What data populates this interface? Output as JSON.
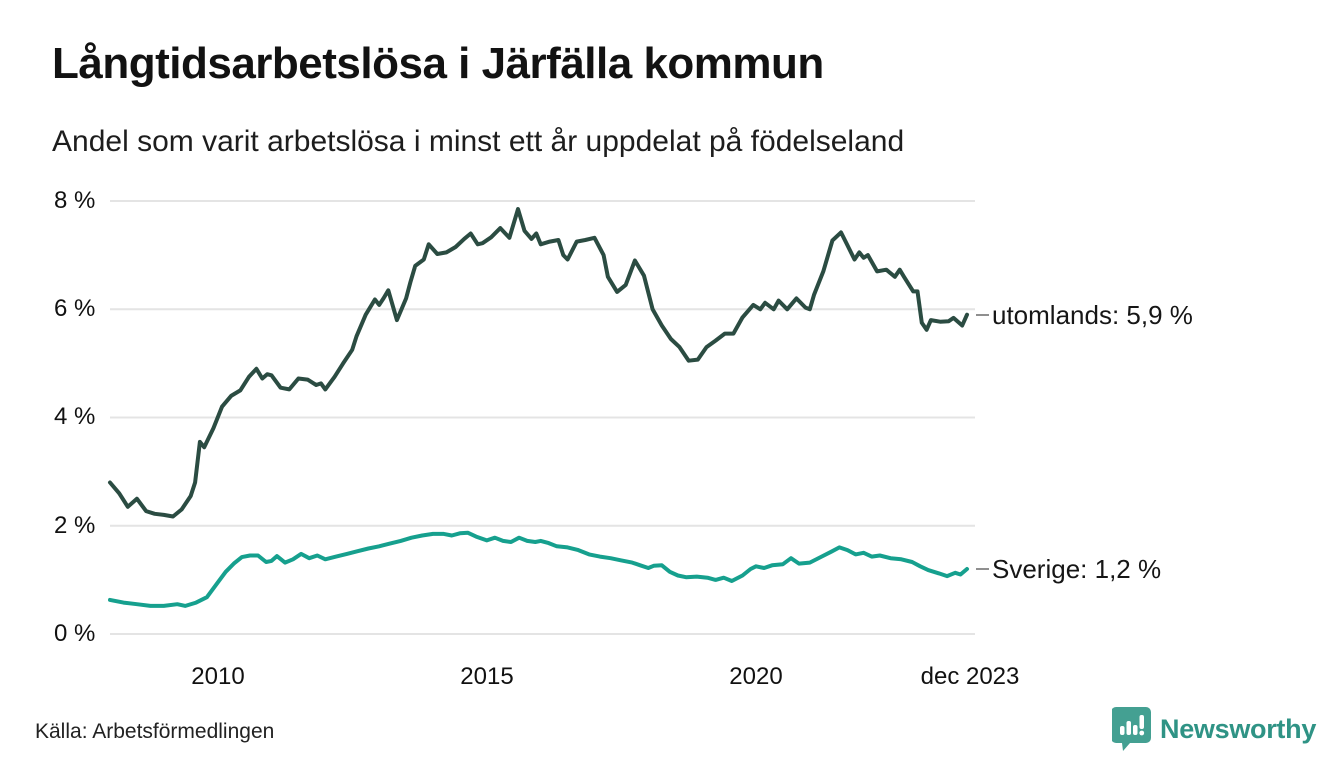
{
  "header": {
    "title": "Långtidsarbetslösa i Järfälla kommun",
    "subtitle": "Andel som varit arbetslösa i minst ett år uppdelat på födelseland"
  },
  "footer": {
    "source": "Källa: Arbetsförmedlingen",
    "logo_text": "Newsworthy",
    "logo_icon": "newsworthy-badge-bar-chart-exclamation"
  },
  "colors": {
    "utomlands_line": "#2b4c42",
    "sverige_line": "#16a08e",
    "grid": "#e4e4e4",
    "label_dash": "#8f8f8f",
    "text": "#161616",
    "logo_teal": "#44a092"
  },
  "chart_data": {
    "type": "line",
    "title": "Långtidsarbetslösa i Järfälla kommun",
    "subtitle": "Andel som varit arbetslösa i minst ett år uppdelat på födelseland",
    "xlabel": "",
    "ylabel": "",
    "unit": "%",
    "xlim": [
      2008.0,
      2023.92
    ],
    "ylim": [
      0,
      8
    ],
    "grid": "horizontal",
    "legend_position": "right-end-labels",
    "y_axis": {
      "ticks": [
        {
          "label": "0 %",
          "v": 0
        },
        {
          "label": "2 %",
          "v": 2
        },
        {
          "label": "4 %",
          "v": 4
        },
        {
          "label": "6 %",
          "v": 6
        },
        {
          "label": "8 %",
          "v": 8
        }
      ]
    },
    "x_axis": {
      "ticks": [
        {
          "label": "2010",
          "t": 2010
        },
        {
          "label": "2015",
          "t": 2015
        },
        {
          "label": "2020",
          "t": 2020
        },
        {
          "label": "dec 2023",
          "t": 2023.92
        }
      ]
    },
    "series": [
      {
        "name": "utomlands",
        "end_label": "utomlands: 5,9 %",
        "end_value": 5.9,
        "color": "#2b4c42",
        "points": [
          [
            2008.0,
            2.8
          ],
          [
            2008.17,
            2.6
          ],
          [
            2008.33,
            2.35
          ],
          [
            2008.5,
            2.5
          ],
          [
            2008.67,
            2.27
          ],
          [
            2008.83,
            2.22
          ],
          [
            2009.0,
            2.2
          ],
          [
            2009.17,
            2.17
          ],
          [
            2009.33,
            2.3
          ],
          [
            2009.5,
            2.55
          ],
          [
            2009.58,
            2.8
          ],
          [
            2009.67,
            3.55
          ],
          [
            2009.75,
            3.45
          ],
          [
            2009.92,
            3.8
          ],
          [
            2010.08,
            4.2
          ],
          [
            2010.25,
            4.4
          ],
          [
            2010.42,
            4.5
          ],
          [
            2010.58,
            4.75
          ],
          [
            2010.72,
            4.9
          ],
          [
            2010.83,
            4.72
          ],
          [
            2010.92,
            4.8
          ],
          [
            2011.0,
            4.78
          ],
          [
            2011.17,
            4.55
          ],
          [
            2011.33,
            4.52
          ],
          [
            2011.5,
            4.72
          ],
          [
            2011.67,
            4.7
          ],
          [
            2011.83,
            4.6
          ],
          [
            2011.92,
            4.63
          ],
          [
            2012.0,
            4.52
          ],
          [
            2012.17,
            4.75
          ],
          [
            2012.33,
            5.0
          ],
          [
            2012.5,
            5.25
          ],
          [
            2012.58,
            5.5
          ],
          [
            2012.75,
            5.9
          ],
          [
            2012.92,
            6.18
          ],
          [
            2013.0,
            6.08
          ],
          [
            2013.08,
            6.2
          ],
          [
            2013.17,
            6.35
          ],
          [
            2013.33,
            5.8
          ],
          [
            2013.5,
            6.2
          ],
          [
            2013.58,
            6.5
          ],
          [
            2013.67,
            6.8
          ],
          [
            2013.83,
            6.92
          ],
          [
            2013.92,
            7.2
          ],
          [
            2014.08,
            7.02
          ],
          [
            2014.25,
            7.05
          ],
          [
            2014.42,
            7.15
          ],
          [
            2014.58,
            7.3
          ],
          [
            2014.7,
            7.4
          ],
          [
            2014.83,
            7.2
          ],
          [
            2014.92,
            7.22
          ],
          [
            2015.08,
            7.33
          ],
          [
            2015.25,
            7.5
          ],
          [
            2015.42,
            7.32
          ],
          [
            2015.58,
            7.85
          ],
          [
            2015.7,
            7.45
          ],
          [
            2015.83,
            7.3
          ],
          [
            2015.92,
            7.4
          ],
          [
            2016.0,
            7.2
          ],
          [
            2016.17,
            7.25
          ],
          [
            2016.33,
            7.28
          ],
          [
            2016.42,
            7.0
          ],
          [
            2016.5,
            6.92
          ],
          [
            2016.67,
            7.25
          ],
          [
            2016.83,
            7.28
          ],
          [
            2017.0,
            7.32
          ],
          [
            2017.17,
            7.0
          ],
          [
            2017.25,
            6.6
          ],
          [
            2017.42,
            6.32
          ],
          [
            2017.58,
            6.45
          ],
          [
            2017.75,
            6.9
          ],
          [
            2017.92,
            6.62
          ],
          [
            2018.08,
            6.0
          ],
          [
            2018.25,
            5.7
          ],
          [
            2018.42,
            5.45
          ],
          [
            2018.58,
            5.3
          ],
          [
            2018.75,
            5.05
          ],
          [
            2018.92,
            5.07
          ],
          [
            2019.08,
            5.3
          ],
          [
            2019.25,
            5.42
          ],
          [
            2019.42,
            5.55
          ],
          [
            2019.58,
            5.55
          ],
          [
            2019.75,
            5.85
          ],
          [
            2019.95,
            6.08
          ],
          [
            2020.08,
            6.0
          ],
          [
            2020.17,
            6.12
          ],
          [
            2020.33,
            6.0
          ],
          [
            2020.42,
            6.16
          ],
          [
            2020.58,
            6.0
          ],
          [
            2020.75,
            6.2
          ],
          [
            2020.92,
            6.03
          ],
          [
            2021.0,
            6.0
          ],
          [
            2021.08,
            6.27
          ],
          [
            2021.25,
            6.7
          ],
          [
            2021.42,
            7.27
          ],
          [
            2021.58,
            7.42
          ],
          [
            2021.7,
            7.18
          ],
          [
            2021.83,
            6.92
          ],
          [
            2021.92,
            7.05
          ],
          [
            2022.0,
            6.95
          ],
          [
            2022.08,
            7.0
          ],
          [
            2022.25,
            6.7
          ],
          [
            2022.42,
            6.73
          ],
          [
            2022.58,
            6.6
          ],
          [
            2022.67,
            6.73
          ],
          [
            2022.75,
            6.6
          ],
          [
            2022.92,
            6.33
          ],
          [
            2023.0,
            6.33
          ],
          [
            2023.08,
            5.75
          ],
          [
            2023.17,
            5.62
          ],
          [
            2023.25,
            5.8
          ],
          [
            2023.42,
            5.77
          ],
          [
            2023.58,
            5.78
          ],
          [
            2023.67,
            5.84
          ],
          [
            2023.83,
            5.7
          ],
          [
            2023.92,
            5.9
          ]
        ]
      },
      {
        "name": "Sverige",
        "end_label": "Sverige: 1,2 %",
        "end_value": 1.2,
        "color": "#16a08e",
        "points": [
          [
            2008.0,
            0.63
          ],
          [
            2008.25,
            0.58
          ],
          [
            2008.5,
            0.55
          ],
          [
            2008.75,
            0.52
          ],
          [
            2009.0,
            0.52
          ],
          [
            2009.25,
            0.55
          ],
          [
            2009.4,
            0.52
          ],
          [
            2009.6,
            0.58
          ],
          [
            2009.8,
            0.68
          ],
          [
            2010.0,
            0.95
          ],
          [
            2010.15,
            1.15
          ],
          [
            2010.3,
            1.3
          ],
          [
            2010.45,
            1.42
          ],
          [
            2010.6,
            1.45
          ],
          [
            2010.75,
            1.45
          ],
          [
            2010.9,
            1.33
          ],
          [
            2011.0,
            1.35
          ],
          [
            2011.1,
            1.44
          ],
          [
            2011.25,
            1.32
          ],
          [
            2011.4,
            1.38
          ],
          [
            2011.55,
            1.48
          ],
          [
            2011.7,
            1.4
          ],
          [
            2011.85,
            1.45
          ],
          [
            2012.0,
            1.38
          ],
          [
            2012.2,
            1.43
          ],
          [
            2012.4,
            1.48
          ],
          [
            2012.6,
            1.53
          ],
          [
            2012.8,
            1.58
          ],
          [
            2013.0,
            1.62
          ],
          [
            2013.2,
            1.67
          ],
          [
            2013.4,
            1.72
          ],
          [
            2013.6,
            1.78
          ],
          [
            2013.8,
            1.82
          ],
          [
            2014.0,
            1.85
          ],
          [
            2014.2,
            1.85
          ],
          [
            2014.35,
            1.82
          ],
          [
            2014.5,
            1.86
          ],
          [
            2014.65,
            1.87
          ],
          [
            2014.8,
            1.8
          ],
          [
            2015.0,
            1.73
          ],
          [
            2015.15,
            1.78
          ],
          [
            2015.3,
            1.72
          ],
          [
            2015.45,
            1.7
          ],
          [
            2015.6,
            1.78
          ],
          [
            2015.75,
            1.72
          ],
          [
            2015.9,
            1.7
          ],
          [
            2016.0,
            1.72
          ],
          [
            2016.15,
            1.68
          ],
          [
            2016.3,
            1.62
          ],
          [
            2016.5,
            1.6
          ],
          [
            2016.7,
            1.55
          ],
          [
            2016.9,
            1.47
          ],
          [
            2017.1,
            1.43
          ],
          [
            2017.3,
            1.4
          ],
          [
            2017.5,
            1.36
          ],
          [
            2017.7,
            1.32
          ],
          [
            2017.85,
            1.27
          ],
          [
            2018.0,
            1.22
          ],
          [
            2018.1,
            1.26
          ],
          [
            2018.25,
            1.27
          ],
          [
            2018.4,
            1.15
          ],
          [
            2018.55,
            1.08
          ],
          [
            2018.7,
            1.05
          ],
          [
            2018.9,
            1.06
          ],
          [
            2019.1,
            1.04
          ],
          [
            2019.25,
            1.0
          ],
          [
            2019.4,
            1.04
          ],
          [
            2019.55,
            0.98
          ],
          [
            2019.75,
            1.08
          ],
          [
            2019.9,
            1.2
          ],
          [
            2020.0,
            1.25
          ],
          [
            2020.15,
            1.22
          ],
          [
            2020.3,
            1.27
          ],
          [
            2020.5,
            1.29
          ],
          [
            2020.65,
            1.4
          ],
          [
            2020.8,
            1.3
          ],
          [
            2021.0,
            1.32
          ],
          [
            2021.2,
            1.42
          ],
          [
            2021.4,
            1.52
          ],
          [
            2021.55,
            1.6
          ],
          [
            2021.7,
            1.55
          ],
          [
            2021.85,
            1.47
          ],
          [
            2022.0,
            1.5
          ],
          [
            2022.15,
            1.43
          ],
          [
            2022.3,
            1.45
          ],
          [
            2022.5,
            1.4
          ],
          [
            2022.7,
            1.38
          ],
          [
            2022.9,
            1.33
          ],
          [
            2023.05,
            1.25
          ],
          [
            2023.2,
            1.18
          ],
          [
            2023.4,
            1.12
          ],
          [
            2023.55,
            1.07
          ],
          [
            2023.7,
            1.13
          ],
          [
            2023.8,
            1.1
          ],
          [
            2023.92,
            1.2
          ]
        ]
      }
    ]
  }
}
